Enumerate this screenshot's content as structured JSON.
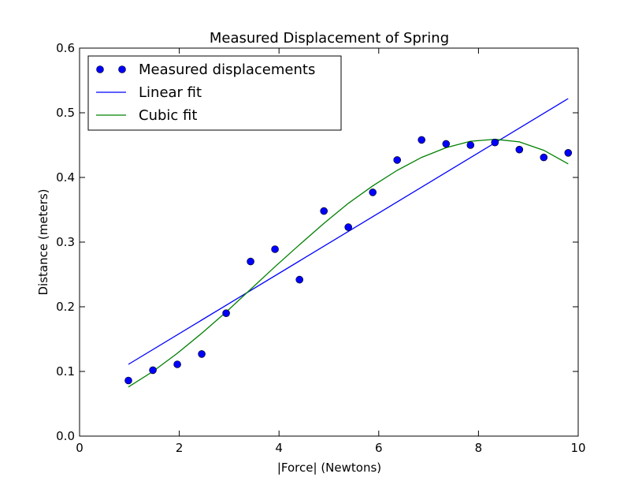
{
  "chart_data": {
    "type": "scatter",
    "title": "Measured Displacement of Spring",
    "xlabel": "|Force| (Newtons)",
    "ylabel": "Distance (meters)",
    "xlim": [
      0,
      10
    ],
    "ylim": [
      0.0,
      0.6
    ],
    "xticks": [
      "0",
      "2",
      "4",
      "6",
      "8",
      "10"
    ],
    "yticks": [
      "0.0",
      "0.1",
      "0.2",
      "0.3",
      "0.4",
      "0.5",
      "0.6"
    ],
    "grid": false,
    "legend_position": "upper-left",
    "series": [
      {
        "name": "Measured displacements",
        "kind": "points",
        "color": "#0000ff",
        "x": [
          0.98,
          1.47,
          1.96,
          2.45,
          2.94,
          3.43,
          3.92,
          4.41,
          4.9,
          5.39,
          5.88,
          6.37,
          6.86,
          7.35,
          7.84,
          8.33,
          8.82,
          9.31,
          9.8
        ],
        "y": [
          0.086,
          0.102,
          0.111,
          0.127,
          0.19,
          0.27,
          0.289,
          0.242,
          0.348,
          0.323,
          0.377,
          0.427,
          0.458,
          0.452,
          0.45,
          0.454,
          0.443,
          0.431,
          0.438
        ]
      },
      {
        "name": "Linear fit",
        "kind": "line",
        "color": "#0000ff",
        "x": [
          0.98,
          9.8
        ],
        "y": [
          0.111,
          0.522
        ]
      },
      {
        "name": "Cubic fit",
        "kind": "line",
        "color": "#008000",
        "x": [
          0.98,
          1.47,
          1.96,
          2.45,
          2.94,
          3.43,
          3.92,
          4.41,
          4.9,
          5.39,
          5.88,
          6.37,
          6.86,
          7.35,
          7.84,
          8.33,
          8.82,
          9.31,
          9.8
        ],
        "y": [
          0.076,
          0.1,
          0.128,
          0.159,
          0.192,
          0.227,
          0.262,
          0.296,
          0.329,
          0.36,
          0.387,
          0.411,
          0.431,
          0.446,
          0.456,
          0.459,
          0.455,
          0.442,
          0.421
        ]
      }
    ]
  }
}
